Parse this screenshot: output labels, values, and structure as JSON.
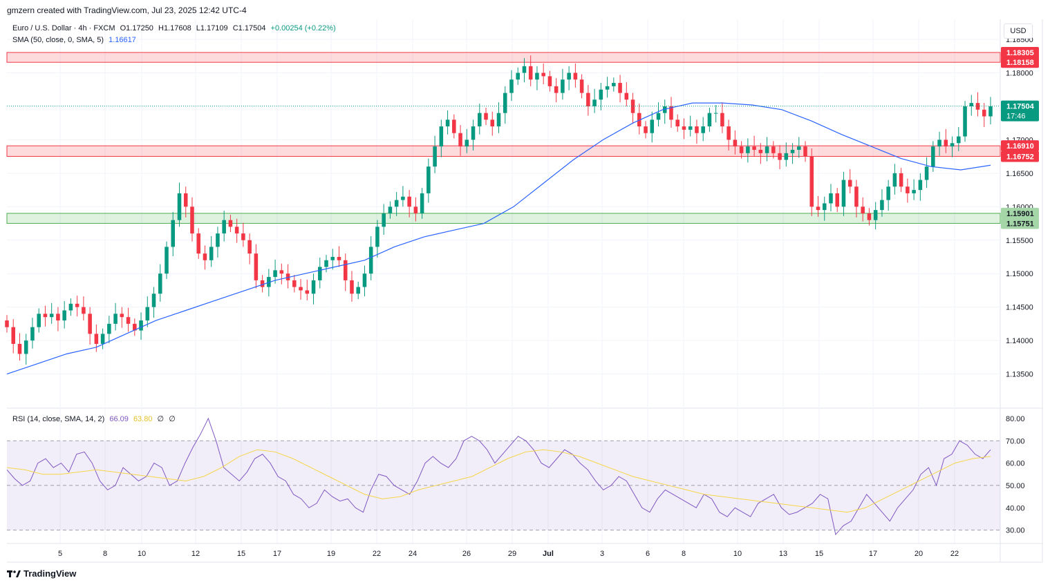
{
  "header": {
    "attribution": "gmzern created with TradingView.com, Jul 23, 2025 12:42 UTC-4",
    "symbol": "Euro / U.S. Dollar · 4h · FXCM",
    "o": "O1.17250",
    "h": "H1.17608",
    "l": "L1.17109",
    "c": "C1.17504",
    "change": "+0.00254 (+0.22%)",
    "sma_label": "SMA (50, close, 0, SMA, 5)",
    "sma_value": "1.16617",
    "rsi_label": "RSI (14, close, SMA, 14, 2)",
    "rsi_value": "66.09",
    "rsi_sma_value": "63.80",
    "rsi_extra1": "∅",
    "rsi_extra2": "∅"
  },
  "currency": "USD",
  "footer": {
    "brand": "TradingView"
  },
  "colors": {
    "up": "#089981",
    "down": "#f23645",
    "sma": "#2962ff",
    "rsi": "#7e57c2",
    "rsi_sma": "#f5d547",
    "resistance_zone": "#f23645",
    "support_zone": "#4caf50"
  },
  "chart_data": [
    {
      "type": "line",
      "title": "Euro / U.S. Dollar · 4h · FXCM",
      "x_tick_labels": [
        "5",
        "8",
        "10",
        "12",
        "15",
        "17",
        "19",
        "22",
        "24",
        "26",
        "29",
        "Jul",
        "3",
        "6",
        "8",
        "10",
        "13",
        "15",
        "17",
        "20",
        "22"
      ],
      "y_tick_labels": [
        "1.18500",
        "1.18000",
        "1.17000",
        "1.16500",
        "1.16000",
        "1.15500",
        "1.15000",
        "1.14500",
        "1.14000",
        "1.13500"
      ],
      "ylim": [
        1.13,
        1.188
      ],
      "price_labels": [
        {
          "value": "1.18305",
          "kind": "zone-red"
        },
        {
          "value": "1.18158",
          "kind": "zone-red"
        },
        {
          "value": "1.17504",
          "kind": "last",
          "sub": "17:46"
        },
        {
          "value": "1.16910",
          "kind": "zone-red"
        },
        {
          "value": "1.16752",
          "kind": "zone-red"
        },
        {
          "value": "1.15901",
          "kind": "zone-green"
        },
        {
          "value": "1.15751",
          "kind": "zone-green"
        }
      ],
      "zones": [
        {
          "name": "resistance",
          "from": 1.18158,
          "to": 1.18305,
          "color": "red"
        },
        {
          "name": "mid",
          "from": 1.16752,
          "to": 1.1691,
          "color": "red"
        },
        {
          "name": "support",
          "from": 1.15751,
          "to": 1.15901,
          "color": "green"
        }
      ],
      "last_price": 1.17504,
      "series": [
        {
          "name": "EURUSD close",
          "values": [
            1.142,
            1.1395,
            1.138,
            1.14,
            1.142,
            1.144,
            1.1435,
            1.144,
            1.143,
            1.1445,
            1.1455,
            1.145,
            1.144,
            1.141,
            1.1395,
            1.141,
            1.1425,
            1.144,
            1.1435,
            1.1425,
            1.1415,
            1.143,
            1.145,
            1.147,
            1.15,
            1.154,
            1.158,
            1.162,
            1.16,
            1.156,
            1.153,
            1.152,
            1.154,
            1.156,
            1.158,
            1.157,
            1.156,
            1.155,
            1.153,
            1.149,
            1.148,
            1.1495,
            1.1505,
            1.15,
            1.149,
            1.148,
            1.1475,
            1.147,
            1.149,
            1.151,
            1.152,
            1.1525,
            1.152,
            1.149,
            1.147,
            1.148,
            1.15,
            1.154,
            1.157,
            1.159,
            1.16,
            1.161,
            1.1615,
            1.16,
            1.159,
            1.162,
            1.166,
            1.169,
            1.172,
            1.173,
            1.171,
            1.169,
            1.17,
            1.172,
            1.174,
            1.173,
            1.172,
            1.174,
            1.177,
            1.179,
            1.18,
            1.181,
            1.179,
            1.18,
            1.1795,
            1.178,
            1.177,
            1.179,
            1.18,
            1.179,
            1.177,
            1.175,
            1.176,
            1.1775,
            1.178,
            1.1785,
            1.177,
            1.176,
            1.174,
            1.172,
            1.171,
            1.173,
            1.174,
            1.175,
            1.173,
            1.172,
            1.1715,
            1.172,
            1.171,
            1.172,
            1.174,
            1.174,
            1.172,
            1.17,
            1.169,
            1.168,
            1.169,
            1.1685,
            1.168,
            1.169,
            1.168,
            1.167,
            1.168,
            1.1685,
            1.169,
            1.1675,
            1.16,
            1.1595,
            1.1605,
            1.162,
            1.16,
            1.164,
            1.163,
            1.16,
            1.159,
            1.158,
            1.1595,
            1.161,
            1.163,
            1.165,
            1.163,
            1.162,
            1.1625,
            1.164,
            1.166,
            1.169,
            1.17,
            1.169,
            1.1695,
            1.1705,
            1.175,
            1.1755,
            1.1745,
            1.1735,
            1.175
          ]
        },
        {
          "name": "SMA 50",
          "values": [
            1.135,
            1.1365,
            1.138,
            1.139,
            1.141,
            1.143,
            1.1445,
            1.146,
            1.1475,
            1.149,
            1.15,
            1.151,
            1.152,
            1.154,
            1.1555,
            1.1565,
            1.1575,
            1.16,
            1.1635,
            1.167,
            1.17,
            1.1725,
            1.1745,
            1.1755,
            1.1755,
            1.1752,
            1.1745,
            1.1728,
            1.1708,
            1.169,
            1.1672,
            1.166,
            1.1655,
            1.1662
          ]
        }
      ]
    },
    {
      "type": "line",
      "title": "RSI (14, close, SMA, 14, 2)",
      "y_tick_labels": [
        "80.00",
        "70.00",
        "60.00",
        "50.00",
        "40.00",
        "30.00"
      ],
      "ylim": [
        24,
        84
      ],
      "bands": {
        "upper": 70,
        "middle": 50,
        "lower": 30
      },
      "series": [
        {
          "name": "RSI",
          "values": [
            57,
            53,
            50,
            52,
            60,
            62,
            58,
            60,
            56,
            64,
            65,
            60,
            52,
            48,
            50,
            58,
            55,
            52,
            54,
            60,
            58,
            50,
            52,
            60,
            67,
            73,
            80,
            70,
            58,
            55,
            52,
            56,
            62,
            64,
            60,
            54,
            52,
            46,
            44,
            40,
            42,
            48,
            45,
            43,
            44,
            40,
            38,
            48,
            55,
            54,
            50,
            48,
            46,
            52,
            60,
            63,
            60,
            58,
            62,
            70,
            72,
            70,
            66,
            60,
            64,
            68,
            72,
            70,
            66,
            60,
            58,
            62,
            66,
            64,
            60,
            57,
            52,
            48,
            50,
            54,
            52,
            46,
            40,
            38,
            44,
            48,
            46,
            44,
            42,
            40,
            46,
            44,
            38,
            36,
            40,
            38,
            36,
            42,
            44,
            46,
            40,
            37,
            38,
            40,
            42,
            46,
            44,
            28,
            32,
            34,
            40,
            46,
            42,
            38,
            34,
            40,
            44,
            48,
            55,
            58,
            50,
            62,
            64,
            70,
            68,
            64,
            62,
            66
          ]
        },
        {
          "name": "RSI SMA",
          "values": [
            58,
            57,
            55,
            55,
            56,
            57,
            56,
            55,
            54,
            53,
            52,
            54,
            58,
            63,
            66,
            65,
            62,
            58,
            54,
            50,
            46,
            44,
            45,
            48,
            50,
            52,
            54,
            58,
            62,
            65,
            66,
            65,
            63,
            60,
            57,
            54,
            52,
            50,
            48,
            46,
            45,
            44,
            43,
            42,
            41,
            40,
            39,
            38,
            40,
            44,
            48,
            52,
            56,
            60,
            62,
            63
          ]
        }
      ]
    }
  ]
}
